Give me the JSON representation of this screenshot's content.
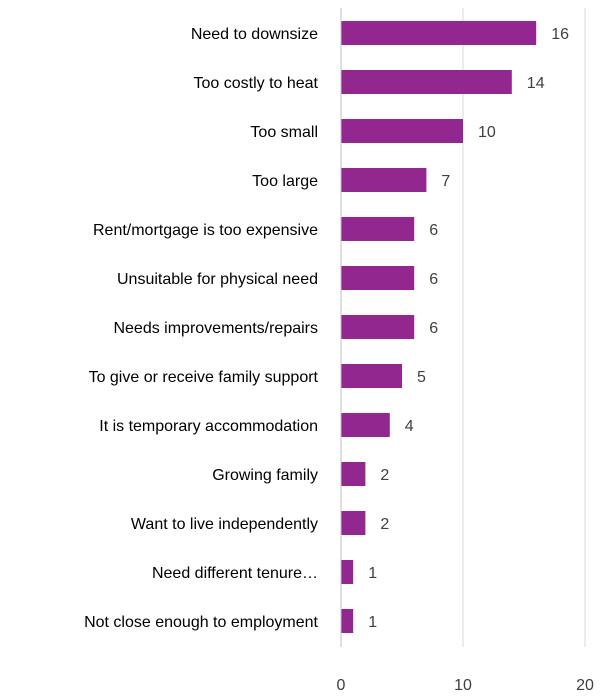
{
  "chart_data": {
    "type": "bar",
    "orientation": "horizontal",
    "categories": [
      "Need to downsize",
      "Too costly to heat",
      "Too small",
      "Too large",
      "Rent/mortgage is too expensive",
      "Unsuitable for physical need",
      "Needs improvements/repairs",
      "To give or receive family support",
      "It is temporary accommodation",
      "Growing family",
      "Want to live independently",
      "Need different tenure…",
      "Not close enough to employment"
    ],
    "values": [
      16,
      14,
      10,
      7,
      6,
      6,
      6,
      5,
      4,
      2,
      2,
      1,
      1
    ],
    "xlim": [
      0,
      20
    ],
    "x_ticks": [
      0,
      10,
      20
    ],
    "grid": true,
    "data_labels": true,
    "bar_color": "#92278f",
    "title": "",
    "xlabel": "",
    "ylabel": ""
  }
}
